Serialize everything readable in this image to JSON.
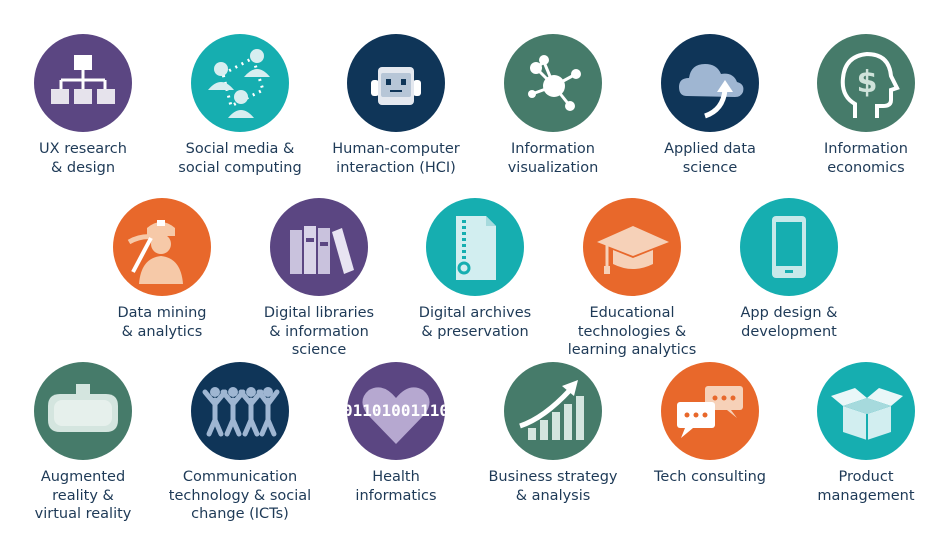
{
  "colors": {
    "purple": "#5b4682",
    "teal": "#16aeb0",
    "navy": "#0f3558",
    "green": "#467b6a",
    "orange": "#e8682b",
    "label": "#1e3a57"
  },
  "tiles": [
    {
      "label": [
        "UX research",
        "& design"
      ],
      "icon": "sitemap-icon",
      "color": "purple"
    },
    {
      "label": [
        "Social media &",
        "social computing"
      ],
      "icon": "people-network-icon",
      "color": "teal"
    },
    {
      "label": [
        "Human-computer",
        "interaction (HCI)"
      ],
      "icon": "robot-icon",
      "color": "navy"
    },
    {
      "label": [
        "Information",
        "visualization"
      ],
      "icon": "network-nodes-icon",
      "color": "green"
    },
    {
      "label": [
        "Applied data",
        "science"
      ],
      "icon": "cloud-arrow-icon",
      "color": "navy"
    },
    {
      "label": [
        "Information",
        "economics"
      ],
      "icon": "head-dollar-icon",
      "color": "green"
    },
    {
      "label": [
        "Data mining",
        "& analytics"
      ],
      "icon": "miner-icon",
      "color": "orange"
    },
    {
      "label": [
        "Digital libraries",
        "& information",
        "science"
      ],
      "icon": "books-icon",
      "color": "purple"
    },
    {
      "label": [
        "Digital archives",
        "& preservation"
      ],
      "icon": "zip-file-icon",
      "color": "teal"
    },
    {
      "label": [
        "Educational",
        "technologies &",
        "learning analytics"
      ],
      "icon": "graduation-cap-icon",
      "color": "orange"
    },
    {
      "label": [
        "App design &",
        "development"
      ],
      "icon": "smartphone-icon",
      "color": "teal"
    },
    {
      "label": [
        "Augmented",
        "reality &",
        "virtual reality"
      ],
      "icon": "vr-headset-icon",
      "color": "green"
    },
    {
      "label": [
        "Communication",
        "technology & social",
        "change (ICTs)"
      ],
      "icon": "people-group-icon",
      "color": "navy"
    },
    {
      "label": [
        "Health",
        "informatics"
      ],
      "icon": "binary-heart-icon",
      "color": "purple",
      "binary": "01101001110"
    },
    {
      "label": [
        "Business strategy",
        "& analysis"
      ],
      "icon": "growth-chart-icon",
      "color": "green"
    },
    {
      "label": [
        "Tech consulting"
      ],
      "icon": "chat-bubbles-icon",
      "color": "orange"
    },
    {
      "label": [
        "Product",
        "management"
      ],
      "icon": "open-box-icon",
      "color": "teal"
    }
  ]
}
